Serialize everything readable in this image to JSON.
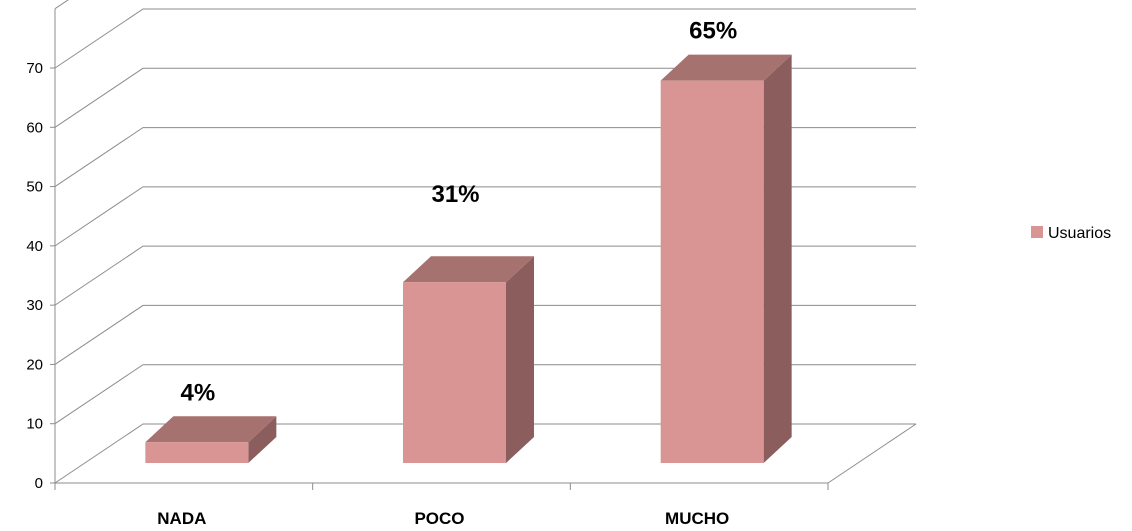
{
  "chart_data": {
    "type": "bar",
    "style": "3d-column",
    "categories": [
      "NADA",
      "POCO",
      "MUCHO"
    ],
    "series": [
      {
        "name": "Usuarios",
        "values": [
          4,
          31,
          65
        ],
        "color": "#d99594"
      }
    ],
    "data_labels": [
      "4%",
      "31%",
      "65%"
    ],
    "ylim": [
      0,
      70
    ],
    "y_ticks": [
      "0",
      "10",
      "20",
      "30",
      "40",
      "50",
      "60",
      "70"
    ],
    "grid": true,
    "legend_position": "right",
    "colors": {
      "bar_front": "#d99594",
      "bar_top": "#a6726f",
      "bar_side": "#8b5e5d",
      "grid": "#8c8c8c"
    }
  },
  "legend": {
    "label": "Usuarios"
  }
}
